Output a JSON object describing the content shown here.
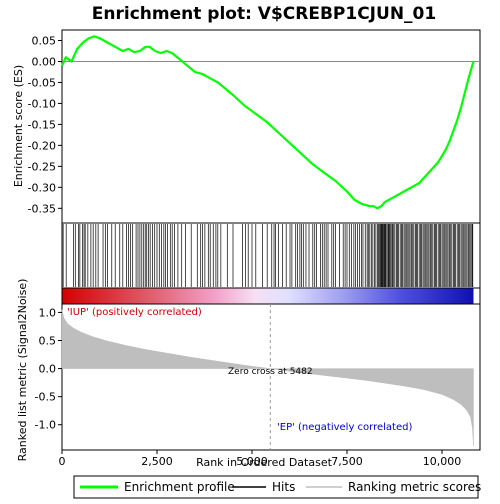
{
  "chart_data": {
    "type": "line",
    "title": "Enrichment plot: V$CREBP1CJUN_01",
    "es_panel": {
      "ylabel": "Enrichment score (ES)",
      "ylim": [
        -0.385,
        0.075
      ],
      "yticks": [
        0.05,
        0.0,
        -0.05,
        -0.1,
        -0.15,
        -0.2,
        -0.25,
        -0.3,
        -0.35
      ],
      "ytick_labels": [
        "0.05",
        "0.00",
        "-0.05",
        "-0.10",
        "-0.15",
        "-0.20",
        "-0.25",
        "-0.30",
        "-0.35"
      ],
      "series": [
        {
          "name": "Enrichment profile",
          "color": "#00ff00",
          "x": [
            0,
            100,
            250,
            400,
            550,
            700,
            850,
            1000,
            1200,
            1400,
            1600,
            1750,
            1900,
            2050,
            2200,
            2300,
            2450,
            2600,
            2750,
            2900,
            3100,
            3300,
            3500,
            3700,
            3900,
            4100,
            4300,
            4500,
            4800,
            5100,
            5400,
            5700,
            6000,
            6300,
            6600,
            6900,
            7200,
            7500,
            7700,
            7900,
            8100,
            8200,
            8300,
            8400,
            8500,
            8600,
            8700,
            8800,
            8900,
            9000,
            9100,
            9200,
            9300,
            9400,
            9500,
            9600,
            9700,
            9800,
            9900,
            10000,
            10100,
            10200,
            10300,
            10400,
            10500,
            10600,
            10700,
            10780,
            10830
          ],
          "y": [
            -0.01,
            0.01,
            0.0,
            0.03,
            0.045,
            0.055,
            0.06,
            0.055,
            0.045,
            0.035,
            0.025,
            0.03,
            0.022,
            0.025,
            0.035,
            0.035,
            0.025,
            0.02,
            0.025,
            0.02,
            0.005,
            -0.01,
            -0.025,
            -0.03,
            -0.04,
            -0.05,
            -0.065,
            -0.08,
            -0.105,
            -0.125,
            -0.145,
            -0.17,
            -0.195,
            -0.22,
            -0.245,
            -0.265,
            -0.285,
            -0.31,
            -0.33,
            -0.34,
            -0.345,
            -0.345,
            -0.35,
            -0.345,
            -0.335,
            -0.33,
            -0.325,
            -0.32,
            -0.315,
            -0.31,
            -0.305,
            -0.3,
            -0.295,
            -0.29,
            -0.28,
            -0.27,
            -0.26,
            -0.25,
            -0.24,
            -0.225,
            -0.21,
            -0.19,
            -0.165,
            -0.14,
            -0.11,
            -0.075,
            -0.04,
            -0.015,
            0.0
          ]
        }
      ]
    },
    "hits": {
      "name": "Hits",
      "color": "#000000",
      "positions": [
        30,
        110,
        300,
        350,
        430,
        470,
        540,
        580,
        610,
        680,
        760,
        820,
        890,
        950,
        1080,
        1140,
        1200,
        1310,
        1400,
        1520,
        1600,
        1700,
        1750,
        1800,
        1860,
        1950,
        2000,
        2050,
        2100,
        2150,
        2190,
        2230,
        2280,
        2320,
        2380,
        2440,
        2500,
        2560,
        2620,
        2680,
        2720,
        2780,
        2850,
        2900,
        2960,
        3050,
        3150,
        3250,
        3400,
        3560,
        3650,
        3700,
        3760,
        3850,
        3900,
        3980,
        4050,
        4100,
        4180,
        4350,
        4500,
        4750,
        4830,
        4900,
        5000,
        5100,
        5280,
        5400,
        5520,
        5580,
        5620,
        5700,
        5800,
        5900,
        6000,
        6050,
        6150,
        6200,
        6260,
        6300,
        6350,
        6420,
        6500,
        6600,
        6650,
        6700,
        6800,
        6850,
        6900,
        6950,
        7000,
        7100,
        7150,
        7200,
        7300,
        7400,
        7450,
        7500,
        7560,
        7620,
        7680,
        7720,
        7780,
        7830,
        7880,
        7920,
        7980,
        8030,
        8060,
        8100,
        8140,
        8180,
        8220,
        8260,
        8300,
        8330,
        8360,
        8380,
        8400,
        8420,
        8440,
        8460,
        8480,
        8500,
        8520,
        8550,
        8580,
        8600,
        8620,
        8650,
        8680,
        8700,
        8730,
        8760,
        8800,
        8830,
        8860,
        8900,
        8930,
        8960,
        9000,
        9030,
        9060,
        9100,
        9130,
        9160,
        9200,
        9230,
        9260,
        9300,
        9330,
        9360,
        9400,
        9430,
        9460,
        9500,
        9530,
        9560,
        9600,
        9630,
        9660,
        9700,
        9730,
        9760,
        9800,
        9830,
        9860,
        9900,
        9930,
        9960,
        10000,
        10030,
        10060,
        10100,
        10130,
        10160,
        10200,
        10230,
        10260,
        10300,
        10330,
        10360,
        10400,
        10430,
        10460,
        10500,
        10530,
        10560,
        10600,
        10630,
        10660,
        10700,
        10730,
        10760,
        10790,
        10810
      ]
    },
    "metric_panel": {
      "name": "Ranking metric scores",
      "ylabel": "Ranked list metric (Signal2Noise)",
      "xlabel": "Rank in Ordered Dataset",
      "ylim": [
        -1.45,
        1.15
      ],
      "yticks": [
        1.0,
        0.5,
        0.0,
        -0.5,
        -1.0
      ],
      "ytick_labels": [
        "1.0",
        "0.5",
        "0.0",
        "-0.5",
        "-1.0"
      ],
      "x": [
        0,
        50,
        150,
        300,
        500,
        800,
        1200,
        1700,
        2200,
        2800,
        3400,
        4000,
        4600,
        5000,
        5482,
        6000,
        6500,
        7000,
        7500,
        8000,
        8500,
        9000,
        9500,
        10000,
        10300,
        10500,
        10650,
        10750,
        10800,
        10830
      ],
      "y": [
        1.05,
        0.9,
        0.8,
        0.72,
        0.65,
        0.57,
        0.49,
        0.41,
        0.34,
        0.27,
        0.2,
        0.14,
        0.08,
        0.04,
        0.0,
        -0.05,
        -0.09,
        -0.13,
        -0.17,
        -0.21,
        -0.26,
        -0.31,
        -0.37,
        -0.46,
        -0.55,
        -0.64,
        -0.74,
        -0.86,
        -1.05,
        -1.38
      ],
      "color": "#bebebe",
      "zero_cross_label": "Zero cross at 5482",
      "zero_cross_x": 5482,
      "positive_label": "'IUP' (positively correlated)",
      "positive_color": "#cc0000",
      "negative_label": "'EP' (negatively correlated)",
      "negative_color": "#0000cc"
    },
    "xaxis": {
      "xlim": [
        0,
        11000
      ],
      "ticks": [
        0,
        2500,
        5000,
        7500,
        10000
      ],
      "tick_labels": [
        "0",
        "2,500",
        "5,000",
        "7,500",
        "10,000"
      ],
      "n_genes": 10830
    },
    "legend": {
      "placement": "bottom",
      "entries": [
        {
          "label": "Enrichment profile",
          "color": "#00ff00"
        },
        {
          "label": "Hits",
          "color": "#000000"
        },
        {
          "label": "Ranking metric scores",
          "color": "#bebebe"
        }
      ]
    }
  }
}
